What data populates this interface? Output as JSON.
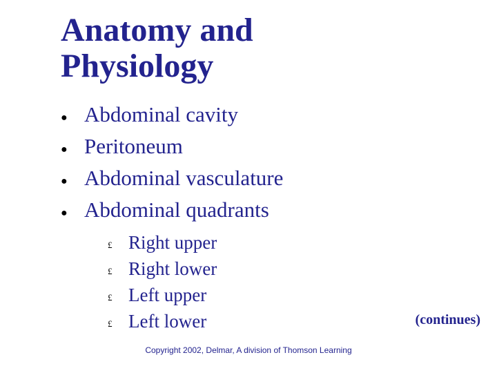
{
  "title_line1": "Anatomy and",
  "title_line2": "Physiology",
  "colors": {
    "text": "#23238e",
    "bullet": "#000000",
    "background": "#ffffff"
  },
  "fonts": {
    "title_size": 48,
    "main_size": 31,
    "sub_size": 27,
    "continues_size": 20,
    "copyright_size": 12
  },
  "main_bullet_glyph": "●",
  "sub_bullet_glyph": "£",
  "main_items": {
    "0": "Abdominal cavity",
    "1": "Peritoneum",
    "2": "Abdominal vasculature",
    "3": "Abdominal quadrants"
  },
  "sub_items": {
    "0": "Right upper",
    "1": "Right lower",
    "2": "Left upper",
    "3": "Left lower"
  },
  "continues": "(continues)",
  "copyright": "Copyright 2002, Delmar, A division of Thomson Learning"
}
